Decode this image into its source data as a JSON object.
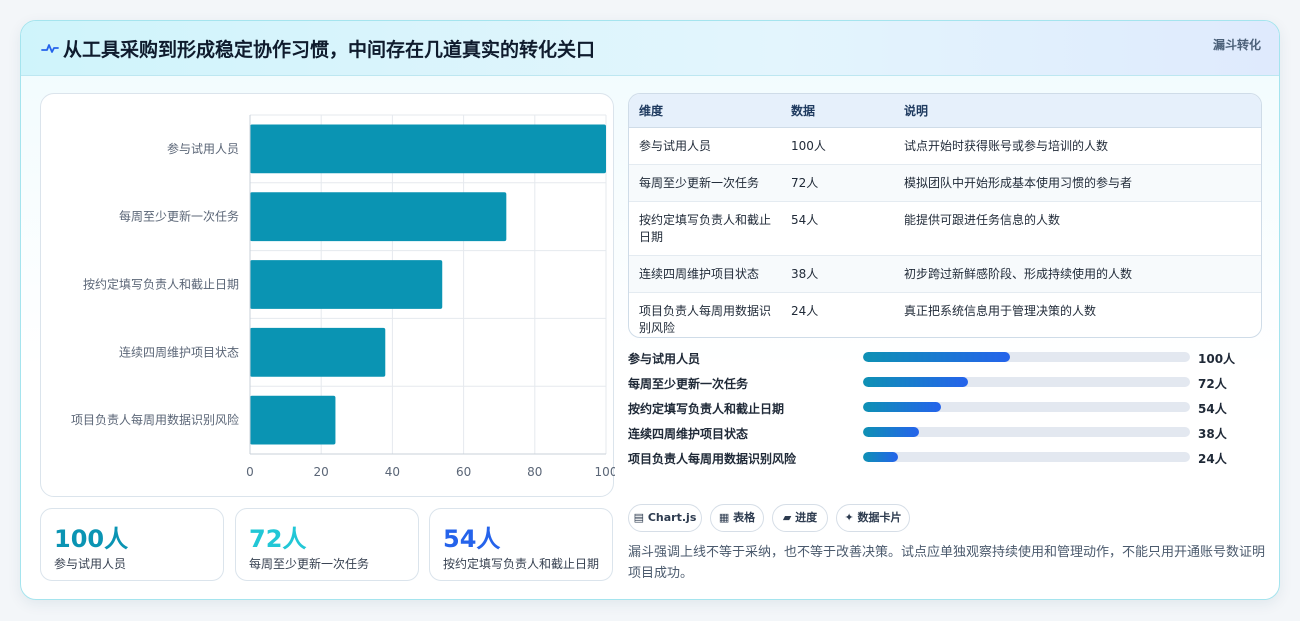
{
  "card": {
    "title_icon": "pulse-icon",
    "title": "从工具采购到形成稳定协作习惯，中间存在几道真实的转化关口",
    "tag": "漏斗转化"
  },
  "chart_data": {
    "type": "bar",
    "orientation": "horizontal",
    "categories": [
      "参与试用人员",
      "每周至少更新一次任务",
      "按约定填写负责人和截止日期",
      "连续四周维护项目状态",
      "项目负责人每周用数据识别风险"
    ],
    "values": [
      100,
      72,
      54,
      38,
      24
    ],
    "xlim": [
      0,
      100
    ],
    "xticks": [
      "0",
      "20",
      "40",
      "60",
      "80",
      "100"
    ],
    "grid": true,
    "bar_color": "#0a94b3"
  },
  "stats": [
    {
      "value": "100人",
      "label": "参与试用人员",
      "color": "#0a94b3"
    },
    {
      "value": "72人",
      "label": "每周至少更新一次任务",
      "color": "#22c7d6"
    },
    {
      "value": "54人",
      "label": "按约定填写负责人和截止日期",
      "color": "#2563eb"
    }
  ],
  "table": {
    "headers": [
      "维度",
      "数据",
      "说明"
    ],
    "rows": [
      [
        "参与试用人员",
        "100人",
        "试点开始时获得账号或参与培训的人数"
      ],
      [
        "每周至少更新一次任务",
        "72人",
        "模拟团队中开始形成基本使用习惯的参与者"
      ],
      [
        "按约定填写负责人和截止日期",
        "54人",
        "能提供可跟进任务信息的人数"
      ],
      [
        "连续四周维护项目状态",
        "38人",
        "初步跨过新鲜感阶段、形成持续使用的人数"
      ],
      [
        "项目负责人每周用数据识别风险",
        "24人",
        "真正把系统信息用于管理决策的人数"
      ]
    ]
  },
  "progress": [
    {
      "label": "参与试用人员",
      "value": "100人",
      "fraction": 0.45
    },
    {
      "label": "每周至少更新一次任务",
      "value": "72人",
      "fraction": 0.32
    },
    {
      "label": "按约定填写负责人和截止日期",
      "value": "54人",
      "fraction": 0.24
    },
    {
      "label": "连续四周维护项目状态",
      "value": "38人",
      "fraction": 0.17
    },
    {
      "label": "项目负责人每周用数据识别风险",
      "value": "24人",
      "fraction": 0.107
    }
  ],
  "chips": [
    {
      "icon": "chart-icon",
      "glyph": "▤",
      "label": "Chart.js"
    },
    {
      "icon": "table-icon",
      "glyph": "▦",
      "label": "表格"
    },
    {
      "icon": "progress-icon",
      "glyph": "▰",
      "label": "进度"
    },
    {
      "icon": "sparkle-icon",
      "glyph": "✦",
      "label": "数据卡片"
    }
  ],
  "note": "漏斗强调上线不等于采纳，也不等于改善决策。试点应单独观察持续使用和管理动作，不能只用开通账号数证明项目成功。"
}
